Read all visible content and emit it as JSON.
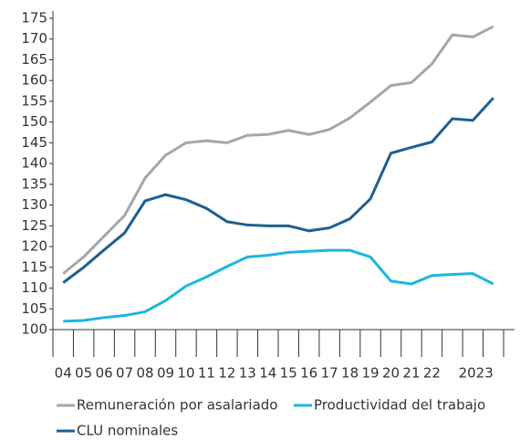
{
  "chart_data": {
    "type": "line",
    "categories": [
      "04",
      "05",
      "06",
      "07",
      "08",
      "09",
      "10",
      "11",
      "12",
      "13",
      "14",
      "15",
      "16",
      "17",
      "18",
      "19",
      "20",
      "21",
      "22",
      null,
      null,
      "2023"
    ],
    "series": [
      {
        "name": "Remuneración por asalariado",
        "color": "#a6a6a6",
        "values": [
          113.5,
          117.5,
          122.5,
          127.5,
          136.5,
          142,
          145,
          145.5,
          145,
          146.8,
          147,
          148,
          147,
          148.2,
          151,
          154.8,
          158.8,
          159.5,
          164,
          171,
          170.5,
          173
        ]
      },
      {
        "name": "Productividad del trabajo",
        "color": "#1ab7e0",
        "values": [
          102,
          102.2,
          102.9,
          103.4,
          104.3,
          107,
          110.5,
          112.7,
          115.2,
          117.5,
          117.9,
          118.6,
          118.9,
          119.1,
          119.1,
          117.5,
          111.7,
          111,
          113,
          113.3,
          113.5,
          111
        ]
      },
      {
        "name": "CLU nominales",
        "color": "#1f5f8f",
        "values": [
          111.3,
          115,
          119.2,
          123.3,
          131,
          132.5,
          131.3,
          129.2,
          126,
          125.2,
          125,
          125,
          123.8,
          124.5,
          126.7,
          131.5,
          142.5,
          143.9,
          145.2,
          150.8,
          150.4,
          155.8
        ]
      }
    ],
    "ylim": [
      100,
      175
    ],
    "yticks": [
      100,
      105,
      110,
      115,
      120,
      125,
      130,
      135,
      140,
      145,
      150,
      155,
      160,
      165,
      170,
      175
    ]
  }
}
